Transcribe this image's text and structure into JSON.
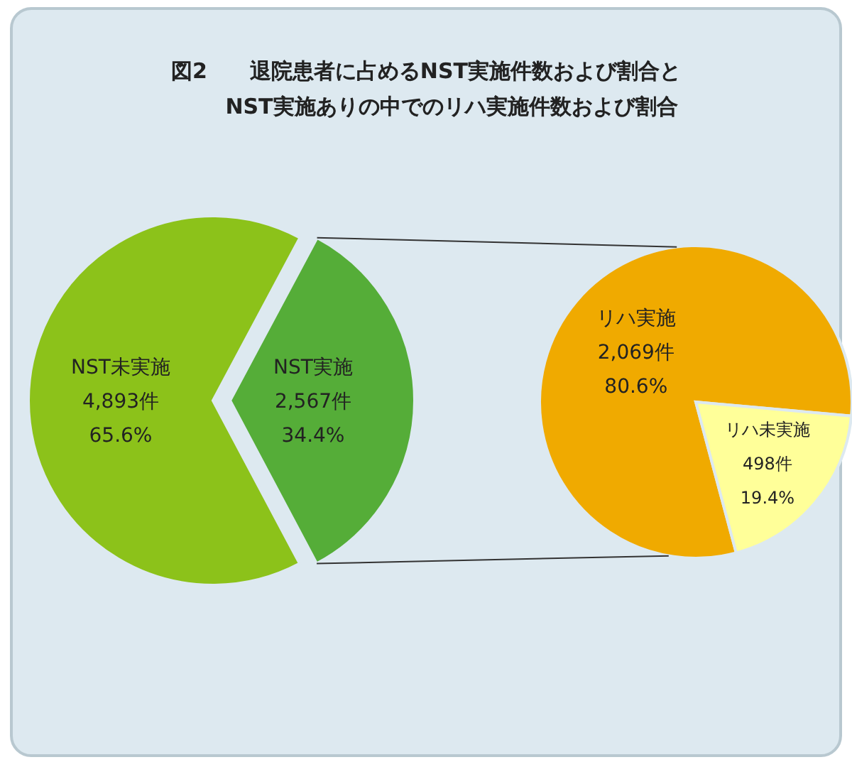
{
  "chart_data": [
    {
      "type": "pie",
      "title": "図2　　退院患者に占めるNST実施件数および割合と",
      "subtitle": "NST実施ありの中でのリハ実施件数および割合",
      "categories": [
        "NST未実施",
        "NST実施"
      ],
      "values": [
        4893,
        2567
      ],
      "colors": [
        "#8cc21a",
        "#55ad38"
      ],
      "value_labels": [
        "4,893件 65.6%",
        "2,567件 34.4%"
      ]
    },
    {
      "type": "pie",
      "categories": [
        "リハ実施",
        "リハ未実施"
      ],
      "values": [
        2069,
        498
      ],
      "colors": [
        "#f0aa00",
        "#ffff99"
      ],
      "value_labels": [
        "2,069件 80.6%",
        "498件 19.4%"
      ]
    }
  ]
}
